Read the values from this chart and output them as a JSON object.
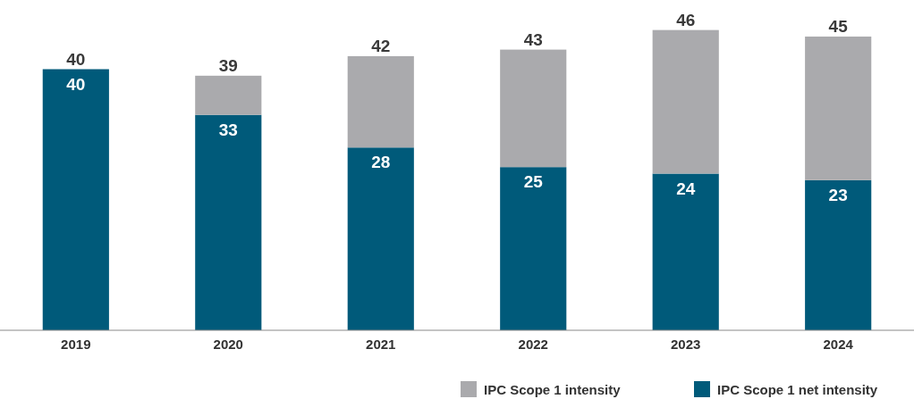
{
  "chart_data": {
    "type": "bar",
    "stacked": true,
    "categories": [
      "2019",
      "2020",
      "2021",
      "2022",
      "2023",
      "2024"
    ],
    "series": [
      {
        "name": "IPC Scope 1 net intensity",
        "color": "#005a7a",
        "values": [
          40,
          33,
          28,
          25,
          24,
          23
        ],
        "value_labels": [
          "40",
          "33",
          "28",
          "25",
          "24",
          "23"
        ]
      },
      {
        "name": "IPC Scope 1 intensity",
        "color": "#aaaaad",
        "values": [
          0,
          6,
          14,
          18,
          22,
          22
        ]
      }
    ],
    "totals": [
      "40",
      "39",
      "42",
      "43",
      "46",
      "45"
    ],
    "legend": "bottom right"
  }
}
